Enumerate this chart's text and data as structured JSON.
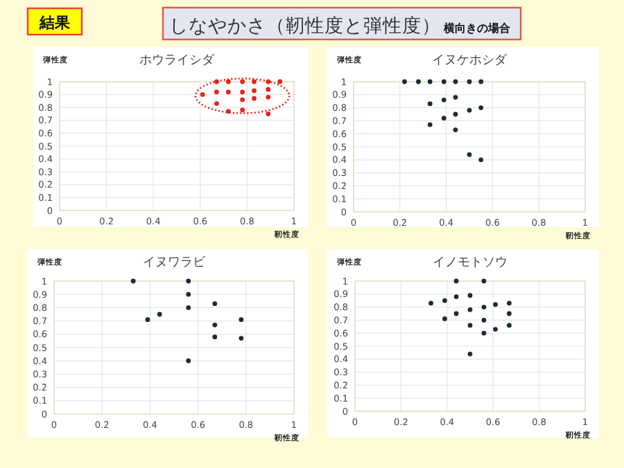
{
  "chart_data": [
    {
      "type": "other",
      "title": "結果",
      "subtitle": "しなやかさ（靭性度と弾性度）",
      "annotations": [
        "横向きの場合"
      ]
    },
    {
      "type": "scatter",
      "title": "ホウライシダ",
      "xlabel": "靭性度",
      "ylabel": "弾性度",
      "xlim": [
        0,
        1
      ],
      "ylim": [
        0,
        1
      ],
      "xticks": [
        0,
        0.2,
        0.4,
        0.6,
        0.8,
        1
      ],
      "yticks": [
        0,
        0.1,
        0.2,
        0.3,
        0.4,
        0.5,
        0.6,
        0.7,
        0.8,
        0.9,
        1
      ],
      "grid": true,
      "marker": "circle",
      "series": [
        {
          "color": "#e8221c",
          "x": [
            0.61,
            0.67,
            0.72,
            0.78,
            0.83,
            0.89,
            0.94,
            0.67,
            0.72,
            0.78,
            0.83,
            0.89,
            0.67,
            0.72,
            0.78,
            0.78,
            0.83,
            0.89,
            0.89
          ],
          "values": [
            0.9,
            1,
            1,
            1,
            1,
            1,
            1,
            0.92,
            0.92,
            0.92,
            0.93,
            0.94,
            0.83,
            0.77,
            0.78,
            0.86,
            0.87,
            0.88,
            0.75
          ]
        }
      ]
    },
    {
      "type": "scatter",
      "title": "イヌケホシダ",
      "xlabel": "靭性度",
      "ylabel": "弾性度",
      "xlim": [
        0,
        1
      ],
      "ylim": [
        0,
        1
      ],
      "xticks": [
        0,
        0.2,
        0.4,
        0.6,
        0.8,
        1
      ],
      "yticks": [
        0,
        0.1,
        0.2,
        0.3,
        0.4,
        0.5,
        0.6,
        0.7,
        0.8,
        0.9,
        1
      ],
      "grid": true,
      "marker": "circle",
      "series": [
        {
          "color": "#1e2b33",
          "x": [
            0.22,
            0.28,
            0.33,
            0.39,
            0.44,
            0.5,
            0.55,
            0.33,
            0.39,
            0.44,
            0.55,
            0.5,
            0.44,
            0.39,
            0.33,
            0.44,
            0.5,
            0.55
          ],
          "values": [
            1,
            1,
            1,
            1,
            1,
            1,
            1,
            0.83,
            0.86,
            0.88,
            0.8,
            0.78,
            0.75,
            0.72,
            0.67,
            0.63,
            0.44,
            0.4
          ]
        }
      ]
    },
    {
      "type": "scatter",
      "title": "イヌワラビ",
      "xlabel": "靭性度",
      "ylabel": "弾性度",
      "xlim": [
        0,
        1
      ],
      "ylim": [
        0,
        1
      ],
      "xticks": [
        0,
        0.2,
        0.4,
        0.6,
        0.8,
        1
      ],
      "yticks": [
        0,
        0.1,
        0.2,
        0.3,
        0.4,
        0.5,
        0.6,
        0.7,
        0.8,
        0.9,
        1
      ],
      "grid": true,
      "marker": "circle",
      "series": [
        {
          "color": "#1e2b33",
          "x": [
            0.33,
            0.56,
            0.56,
            0.56,
            0.67,
            0.39,
            0.44,
            0.67,
            0.78,
            0.67,
            0.78,
            0.56
          ],
          "values": [
            1,
            1,
            0.9,
            0.8,
            0.83,
            0.71,
            0.75,
            0.67,
            0.71,
            0.58,
            0.57,
            0.4
          ]
        }
      ]
    },
    {
      "type": "scatter",
      "title": "イノモトソウ",
      "xlabel": "靭性度",
      "ylabel": "弾性度",
      "xlim": [
        0,
        1
      ],
      "ylim": [
        0,
        1
      ],
      "xticks": [
        0,
        0.2,
        0.4,
        0.6,
        0.8,
        1
      ],
      "yticks": [
        0,
        0.1,
        0.2,
        0.3,
        0.4,
        0.5,
        0.6,
        0.7,
        0.8,
        0.9,
        1
      ],
      "grid": true,
      "marker": "circle",
      "series": [
        {
          "color": "#1e2b33",
          "x": [
            0.44,
            0.56,
            0.33,
            0.39,
            0.44,
            0.5,
            0.56,
            0.61,
            0.67,
            0.5,
            0.44,
            0.39,
            0.56,
            0.67,
            0.5,
            0.56,
            0.61,
            0.67,
            0.5
          ],
          "values": [
            1,
            1,
            0.83,
            0.85,
            0.88,
            0.89,
            0.8,
            0.82,
            0.83,
            0.78,
            0.75,
            0.71,
            0.7,
            0.75,
            0.66,
            0.6,
            0.63,
            0.66,
            0.44
          ]
        }
      ]
    }
  ]
}
